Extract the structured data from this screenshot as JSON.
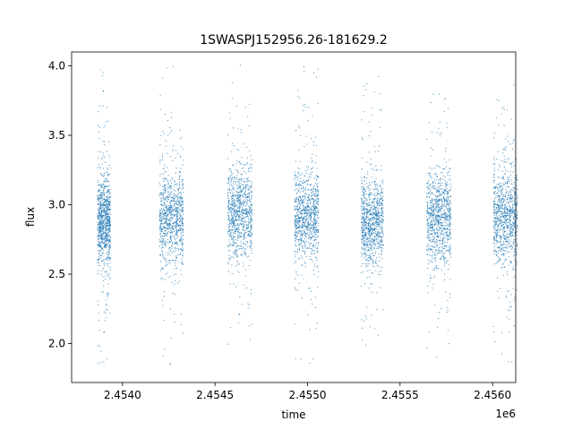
{
  "chart_data": {
    "type": "scatter",
    "title": "1SWASPJ152956.26-181629.2",
    "xlabel": "time",
    "ylabel": "flux",
    "x_offset_label": "1e6",
    "xlim": [
      2453725,
      2456125
    ],
    "ylim": [
      1.72,
      4.1
    ],
    "x_ticks": [
      2.454,
      2.4545,
      2.455,
      2.4555,
      2.456
    ],
    "x_tick_labels": [
      "2.4540",
      "2.4545",
      "2.4550",
      "2.4555",
      "2.4560"
    ],
    "y_ticks": [
      2.0,
      2.5,
      3.0,
      3.5,
      4.0
    ],
    "y_tick_labels": [
      "2.0",
      "2.5",
      "3.0",
      "3.5",
      "4.0"
    ],
    "grid": false,
    "marker_color": "#1f77b4",
    "observing_seasons": [
      {
        "time_range": [
          2453865,
          2453935
        ],
        "flux_median": 2.88,
        "flux_range": [
          1.85,
          4.0
        ]
      },
      {
        "time_range": [
          2454200,
          2454330
        ],
        "flux_median": 2.9,
        "flux_range": [
          1.84,
          4.0
        ]
      },
      {
        "time_range": [
          2454570,
          2454700
        ],
        "flux_median": 2.93,
        "flux_range": [
          1.84,
          4.02
        ]
      },
      {
        "time_range": [
          2454930,
          2455060
        ],
        "flux_median": 2.92,
        "flux_range": [
          1.82,
          4.0
        ]
      },
      {
        "time_range": [
          2455290,
          2455410
        ],
        "flux_median": 2.88,
        "flux_range": [
          1.83,
          3.93
        ]
      },
      {
        "time_range": [
          2455645,
          2455775
        ],
        "flux_median": 2.9,
        "flux_range": [
          1.84,
          3.81
        ]
      },
      {
        "time_range": [
          2456005,
          2456135
        ],
        "flux_median": 2.9,
        "flux_range": [
          1.86,
          4.01
        ]
      }
    ]
  }
}
